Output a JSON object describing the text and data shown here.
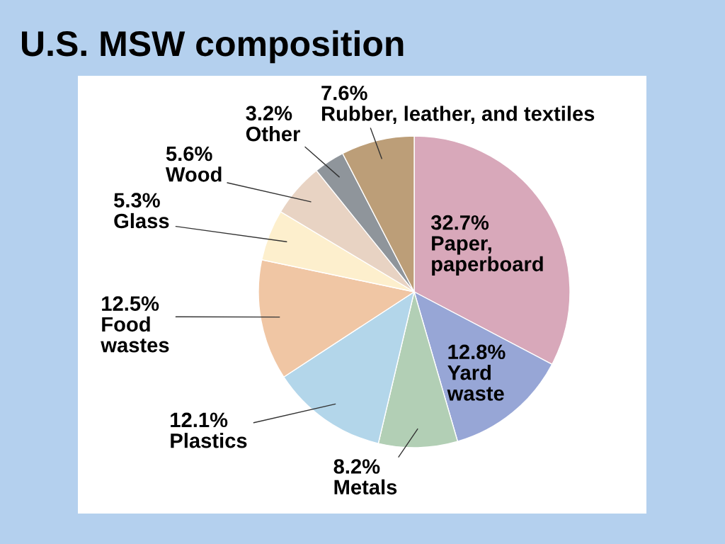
{
  "chart_data": {
    "type": "pie",
    "title": "U.S. MSW composition",
    "categories": [
      "Paper,\npaperboard",
      "Yard\nwaste",
      "Metals",
      "Plastics",
      "Food\nwastes",
      "Glass",
      "Wood",
      "Other",
      "Rubber, leather, and textiles"
    ],
    "values": [
      32.7,
      12.8,
      8.2,
      12.1,
      12.5,
      5.3,
      5.6,
      3.2,
      7.6
    ],
    "colors": [
      "#d8a8ba",
      "#97a6d6",
      "#b2cfb5",
      "#b3d6ea",
      "#f0c6a4",
      "#fdefcd",
      "#e8d3c3",
      "#8f959b",
      "#bc9e78"
    ],
    "value_labels": [
      "32.7%",
      "12.8%",
      "8.2%",
      "12.1%",
      "12.5%",
      "5.3%",
      "5.6%",
      "3.2%",
      "7.6%"
    ]
  }
}
